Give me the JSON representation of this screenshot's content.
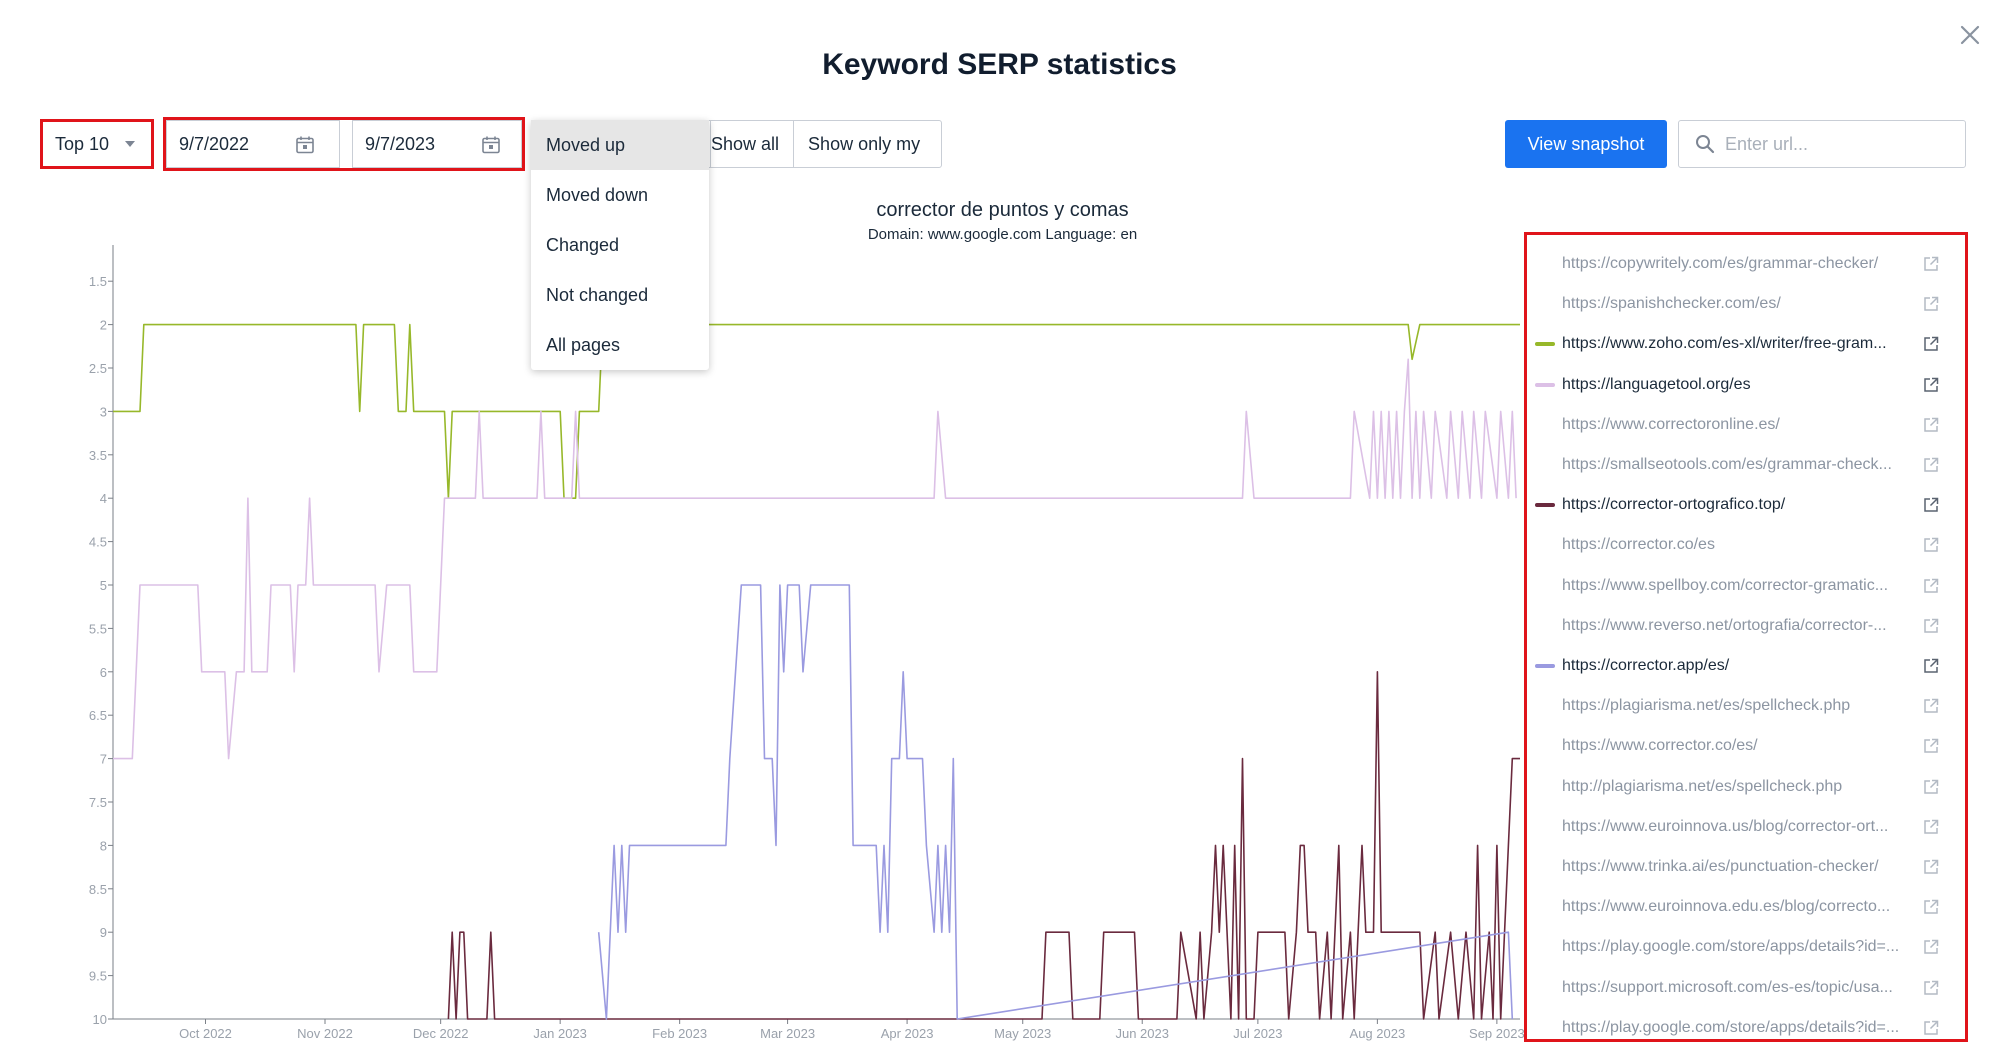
{
  "title": "Keyword SERP statistics",
  "toolbar": {
    "top_select": "Top 10",
    "date_from": "9/7/2022",
    "date_to": "9/7/2023",
    "show_all": "Show all",
    "show_only_my": "Show only my",
    "view_snapshot": "View snapshot",
    "search_placeholder": "Enter url..."
  },
  "filter_menu": {
    "items": [
      "Moved up",
      "Moved down",
      "Changed",
      "Not changed",
      "All pages"
    ],
    "selected": "Moved up"
  },
  "colors": {
    "accent": "#1a73f0",
    "highlight": "#e0141a",
    "zoho": "#97b82a",
    "languagetool": "#dcc0e6",
    "corrector_ortografico": "#6a2a3e",
    "corrector_app": "#9a9ae0"
  },
  "chart_data": {
    "type": "line",
    "title": "corrector de puntos y comas",
    "subtitle": "Domain: www.google.com Language: en",
    "y_ticks": [
      "1.5",
      "2",
      "2.5",
      "3",
      "3.5",
      "4",
      "4.5",
      "5",
      "5.5",
      "6",
      "6.5",
      "7",
      "7.5",
      "8",
      "8.5",
      "9",
      "9.5",
      "10"
    ],
    "ylim": [
      1,
      10
    ],
    "y_reversed": true,
    "x_ticks": [
      "Oct 2022",
      "Nov 2022",
      "Dec 2022",
      "Jan 2023",
      "Feb 2023",
      "Mar 2023",
      "Apr 2023",
      "May 2023",
      "Jun 2023",
      "Jul 2023",
      "Aug 2023",
      "Sep 2023"
    ],
    "xlim": [
      "2022-09-07",
      "2023-09-07"
    ],
    "series": [
      {
        "name": "https://www.zoho.com/es-xl/writer/free-gram...",
        "color": "#97b82a",
        "points": [
          [
            "2022-09-07",
            3
          ],
          [
            "2022-09-14",
            3
          ],
          [
            "2022-09-15",
            2
          ],
          [
            "2022-11-09",
            2
          ],
          [
            "2022-11-10",
            3
          ],
          [
            "2022-11-11",
            2
          ],
          [
            "2022-11-19",
            2
          ],
          [
            "2022-11-20",
            3
          ],
          [
            "2022-11-22",
            3
          ],
          [
            "2022-11-23",
            2
          ],
          [
            "2022-11-24",
            3
          ],
          [
            "2022-12-02",
            3
          ],
          [
            "2022-12-03",
            4
          ],
          [
            "2022-12-04",
            3
          ],
          [
            "2022-12-24",
            3
          ],
          [
            "2022-12-26",
            3
          ],
          [
            "2023-01-01",
            3
          ],
          [
            "2023-01-02",
            4
          ],
          [
            "2023-01-05",
            4
          ],
          [
            "2023-01-06",
            3
          ],
          [
            "2023-01-11",
            3
          ],
          [
            "2023-01-12",
            2
          ],
          [
            "2023-08-09",
            2
          ],
          [
            "2023-08-10",
            2.4
          ],
          [
            "2023-08-12",
            2
          ],
          [
            "2023-09-07",
            2
          ]
        ]
      },
      {
        "name": "https://languagetool.org/es",
        "color": "#dcc0e6",
        "points": [
          [
            "2022-09-07",
            7
          ],
          [
            "2022-09-12",
            7
          ],
          [
            "2022-09-14",
            5
          ],
          [
            "2022-09-29",
            5
          ],
          [
            "2022-09-30",
            6
          ],
          [
            "2022-10-06",
            6
          ],
          [
            "2022-10-07",
            7
          ],
          [
            "2022-10-09",
            6
          ],
          [
            "2022-10-11",
            6
          ],
          [
            "2022-10-12",
            4
          ],
          [
            "2022-10-13",
            6
          ],
          [
            "2022-10-17",
            6
          ],
          [
            "2022-10-18",
            5
          ],
          [
            "2022-10-23",
            5
          ],
          [
            "2022-10-24",
            6
          ],
          [
            "2022-10-25",
            5
          ],
          [
            "2022-10-27",
            5
          ],
          [
            "2022-10-28",
            4
          ],
          [
            "2022-10-29",
            5
          ],
          [
            "2022-11-14",
            5
          ],
          [
            "2022-11-15",
            6
          ],
          [
            "2022-11-17",
            5
          ],
          [
            "2022-11-23",
            5
          ],
          [
            "2022-11-24",
            6
          ],
          [
            "2022-11-30",
            6
          ],
          [
            "2022-12-02",
            4
          ],
          [
            "2022-12-10",
            4
          ],
          [
            "2022-12-11",
            3
          ],
          [
            "2022-12-12",
            4
          ],
          [
            "2022-12-26",
            4
          ],
          [
            "2022-12-27",
            3
          ],
          [
            "2022-12-28",
            4
          ],
          [
            "2023-01-04",
            4
          ],
          [
            "2023-01-05",
            3
          ],
          [
            "2023-01-06",
            4
          ],
          [
            "2023-04-08",
            4
          ],
          [
            "2023-04-09",
            3
          ],
          [
            "2023-04-11",
            4
          ],
          [
            "2023-06-27",
            4
          ],
          [
            "2023-06-28",
            3
          ],
          [
            "2023-06-30",
            4
          ],
          [
            "2023-07-25",
            4
          ],
          [
            "2023-07-26",
            3
          ],
          [
            "2023-07-30",
            4
          ],
          [
            "2023-07-31",
            3
          ],
          [
            "2023-08-01",
            4
          ],
          [
            "2023-08-02",
            3
          ],
          [
            "2023-08-03",
            4
          ],
          [
            "2023-08-04",
            3
          ],
          [
            "2023-08-05",
            4
          ],
          [
            "2023-08-06",
            3
          ],
          [
            "2023-08-07",
            4
          ],
          [
            "2023-08-08",
            3
          ],
          [
            "2023-08-09",
            2.4
          ],
          [
            "2023-08-10",
            4
          ],
          [
            "2023-08-11",
            3
          ],
          [
            "2023-08-12",
            4
          ],
          [
            "2023-08-13",
            3
          ],
          [
            "2023-08-15",
            4
          ],
          [
            "2023-08-16",
            3
          ],
          [
            "2023-08-19",
            4
          ],
          [
            "2023-08-20",
            3
          ],
          [
            "2023-08-22",
            4
          ],
          [
            "2023-08-23",
            3
          ],
          [
            "2023-08-25",
            4
          ],
          [
            "2023-08-26",
            3
          ],
          [
            "2023-08-28",
            4
          ],
          [
            "2023-08-29",
            3
          ],
          [
            "2023-09-01",
            4
          ],
          [
            "2023-09-02",
            3
          ],
          [
            "2023-09-04",
            4
          ],
          [
            "2023-09-05",
            3
          ],
          [
            "2023-09-06",
            4
          ]
        ]
      },
      {
        "name": "https://corrector-ortografico.top/",
        "color": "#6a2a3e",
        "points": [
          [
            "2022-12-03",
            10
          ],
          [
            "2022-12-04",
            9
          ],
          [
            "2022-12-05",
            10
          ],
          [
            "2022-12-06",
            9
          ],
          [
            "2022-12-07",
            9
          ],
          [
            "2022-12-08",
            10
          ],
          [
            "2022-12-13",
            10
          ],
          [
            "2022-12-14",
            9
          ],
          [
            "2022-12-15",
            10
          ],
          [
            "2023-05-06",
            10
          ],
          [
            "2023-05-07",
            9
          ],
          [
            "2023-05-13",
            9
          ],
          [
            "2023-05-14",
            10
          ],
          [
            "2023-05-21",
            10
          ],
          [
            "2023-05-22",
            9
          ],
          [
            "2023-05-30",
            9
          ],
          [
            "2023-05-31",
            10
          ],
          [
            "2023-06-10",
            10
          ],
          [
            "2023-06-11",
            9
          ],
          [
            "2023-06-15",
            10
          ],
          [
            "2023-06-16",
            9
          ],
          [
            "2023-06-17",
            10
          ],
          [
            "2023-06-19",
            9
          ],
          [
            "2023-06-20",
            8
          ],
          [
            "2023-06-21",
            9
          ],
          [
            "2023-06-22",
            8
          ],
          [
            "2023-06-24",
            10
          ],
          [
            "2023-06-25",
            8
          ],
          [
            "2023-06-26",
            10
          ],
          [
            "2023-06-27",
            7
          ],
          [
            "2023-06-28",
            10
          ],
          [
            "2023-06-30",
            10
          ],
          [
            "2023-07-01",
            9
          ],
          [
            "2023-07-08",
            9
          ],
          [
            "2023-07-09",
            10
          ],
          [
            "2023-07-11",
            9
          ],
          [
            "2023-07-12",
            8
          ],
          [
            "2023-07-13",
            8
          ],
          [
            "2023-07-14",
            9
          ],
          [
            "2023-07-16",
            9
          ],
          [
            "2023-07-17",
            10
          ],
          [
            "2023-07-19",
            9
          ],
          [
            "2023-07-20",
            10
          ],
          [
            "2023-07-22",
            8
          ],
          [
            "2023-07-23",
            10
          ],
          [
            "2023-07-25",
            9
          ],
          [
            "2023-07-26",
            10
          ],
          [
            "2023-07-28",
            8
          ],
          [
            "2023-07-29",
            9
          ],
          [
            "2023-07-31",
            9
          ],
          [
            "2023-08-01",
            6
          ],
          [
            "2023-08-02",
            9
          ],
          [
            "2023-08-08",
            9
          ],
          [
            "2023-08-12",
            9
          ],
          [
            "2023-08-13",
            10
          ],
          [
            "2023-08-16",
            9
          ],
          [
            "2023-08-17",
            10
          ],
          [
            "2023-08-20",
            9
          ],
          [
            "2023-08-22",
            10
          ],
          [
            "2023-08-24",
            9
          ],
          [
            "2023-08-26",
            10
          ],
          [
            "2023-08-27",
            8
          ],
          [
            "2023-08-28",
            10
          ],
          [
            "2023-08-30",
            9
          ],
          [
            "2023-08-31",
            10
          ],
          [
            "2023-09-01",
            8
          ],
          [
            "2023-09-02",
            10
          ],
          [
            "2023-09-04",
            8
          ],
          [
            "2023-09-05",
            7
          ],
          [
            "2023-09-07",
            7
          ]
        ]
      },
      {
        "name": "https://corrector.app/es/",
        "color": "#9a9ae0",
        "points": [
          [
            "2023-01-11",
            9
          ],
          [
            "2023-01-13",
            10
          ],
          [
            "2023-01-15",
            8
          ],
          [
            "2023-01-16",
            9
          ],
          [
            "2023-01-17",
            8
          ],
          [
            "2023-01-18",
            9
          ],
          [
            "2023-01-19",
            8
          ],
          [
            "2023-02-13",
            8
          ],
          [
            "2023-02-14",
            7
          ],
          [
            "2023-02-17",
            5
          ],
          [
            "2023-02-22",
            5
          ],
          [
            "2023-02-23",
            7
          ],
          [
            "2023-02-25",
            7
          ],
          [
            "2023-02-26",
            8
          ],
          [
            "2023-02-27",
            5
          ],
          [
            "2023-02-28",
            6
          ],
          [
            "2023-03-01",
            5
          ],
          [
            "2023-03-04",
            5
          ],
          [
            "2023-03-05",
            6
          ],
          [
            "2023-03-07",
            5
          ],
          [
            "2023-03-17",
            5
          ],
          [
            "2023-03-18",
            8
          ],
          [
            "2023-03-24",
            8
          ],
          [
            "2023-03-25",
            9
          ],
          [
            "2023-03-26",
            8
          ],
          [
            "2023-03-27",
            9
          ],
          [
            "2023-03-28",
            7
          ],
          [
            "2023-03-30",
            7
          ],
          [
            "2023-03-31",
            6
          ],
          [
            "2023-04-01",
            7
          ],
          [
            "2023-04-05",
            7
          ],
          [
            "2023-04-06",
            8
          ],
          [
            "2023-04-08",
            9
          ],
          [
            "2023-04-09",
            8
          ],
          [
            "2023-04-10",
            9
          ],
          [
            "2023-04-11",
            8
          ],
          [
            "2023-04-12",
            9
          ],
          [
            "2023-04-13",
            7
          ],
          [
            "2023-04-14",
            10
          ],
          [
            "2023-09-04",
            9
          ],
          [
            "2023-09-05",
            10
          ]
        ]
      }
    ]
  },
  "legend": [
    {
      "url": "https://copywritely.com/es/grammar-checker/",
      "active": false,
      "swatch": ""
    },
    {
      "url": "https://spanishchecker.com/es/",
      "active": false,
      "swatch": ""
    },
    {
      "url": "https://www.zoho.com/es-xl/writer/free-gram...",
      "active": true,
      "swatch": "#97b82a"
    },
    {
      "url": "https://languagetool.org/es",
      "active": true,
      "swatch": "#dcc0e6"
    },
    {
      "url": "https://www.correctoronline.es/",
      "active": false,
      "swatch": ""
    },
    {
      "url": "https://smallseotools.com/es/grammar-check...",
      "active": false,
      "swatch": ""
    },
    {
      "url": "https://corrector-ortografico.top/",
      "active": true,
      "swatch": "#6a2a3e"
    },
    {
      "url": "https://corrector.co/es",
      "active": false,
      "swatch": ""
    },
    {
      "url": "https://www.spellboy.com/corrector-gramatic...",
      "active": false,
      "swatch": ""
    },
    {
      "url": "https://www.reverso.net/ortografia/corrector-...",
      "active": false,
      "swatch": ""
    },
    {
      "url": "https://corrector.app/es/",
      "active": true,
      "swatch": "#9a9ae0"
    },
    {
      "url": "https://plagiarisma.net/es/spellcheck.php",
      "active": false,
      "swatch": ""
    },
    {
      "url": "https://www.corrector.co/es/",
      "active": false,
      "swatch": ""
    },
    {
      "url": "http://plagiarisma.net/es/spellcheck.php",
      "active": false,
      "swatch": ""
    },
    {
      "url": "https://www.euroinnova.us/blog/corrector-ort...",
      "active": false,
      "swatch": ""
    },
    {
      "url": "https://www.trinka.ai/es/punctuation-checker/",
      "active": false,
      "swatch": ""
    },
    {
      "url": "https://www.euroinnova.edu.es/blog/correcto...",
      "active": false,
      "swatch": ""
    },
    {
      "url": "https://play.google.com/store/apps/details?id=...",
      "active": false,
      "swatch": ""
    },
    {
      "url": "https://support.microsoft.com/es-es/topic/usa...",
      "active": false,
      "swatch": ""
    },
    {
      "url": "https://play.google.com/store/apps/details?id=...",
      "active": false,
      "swatch": ""
    }
  ]
}
